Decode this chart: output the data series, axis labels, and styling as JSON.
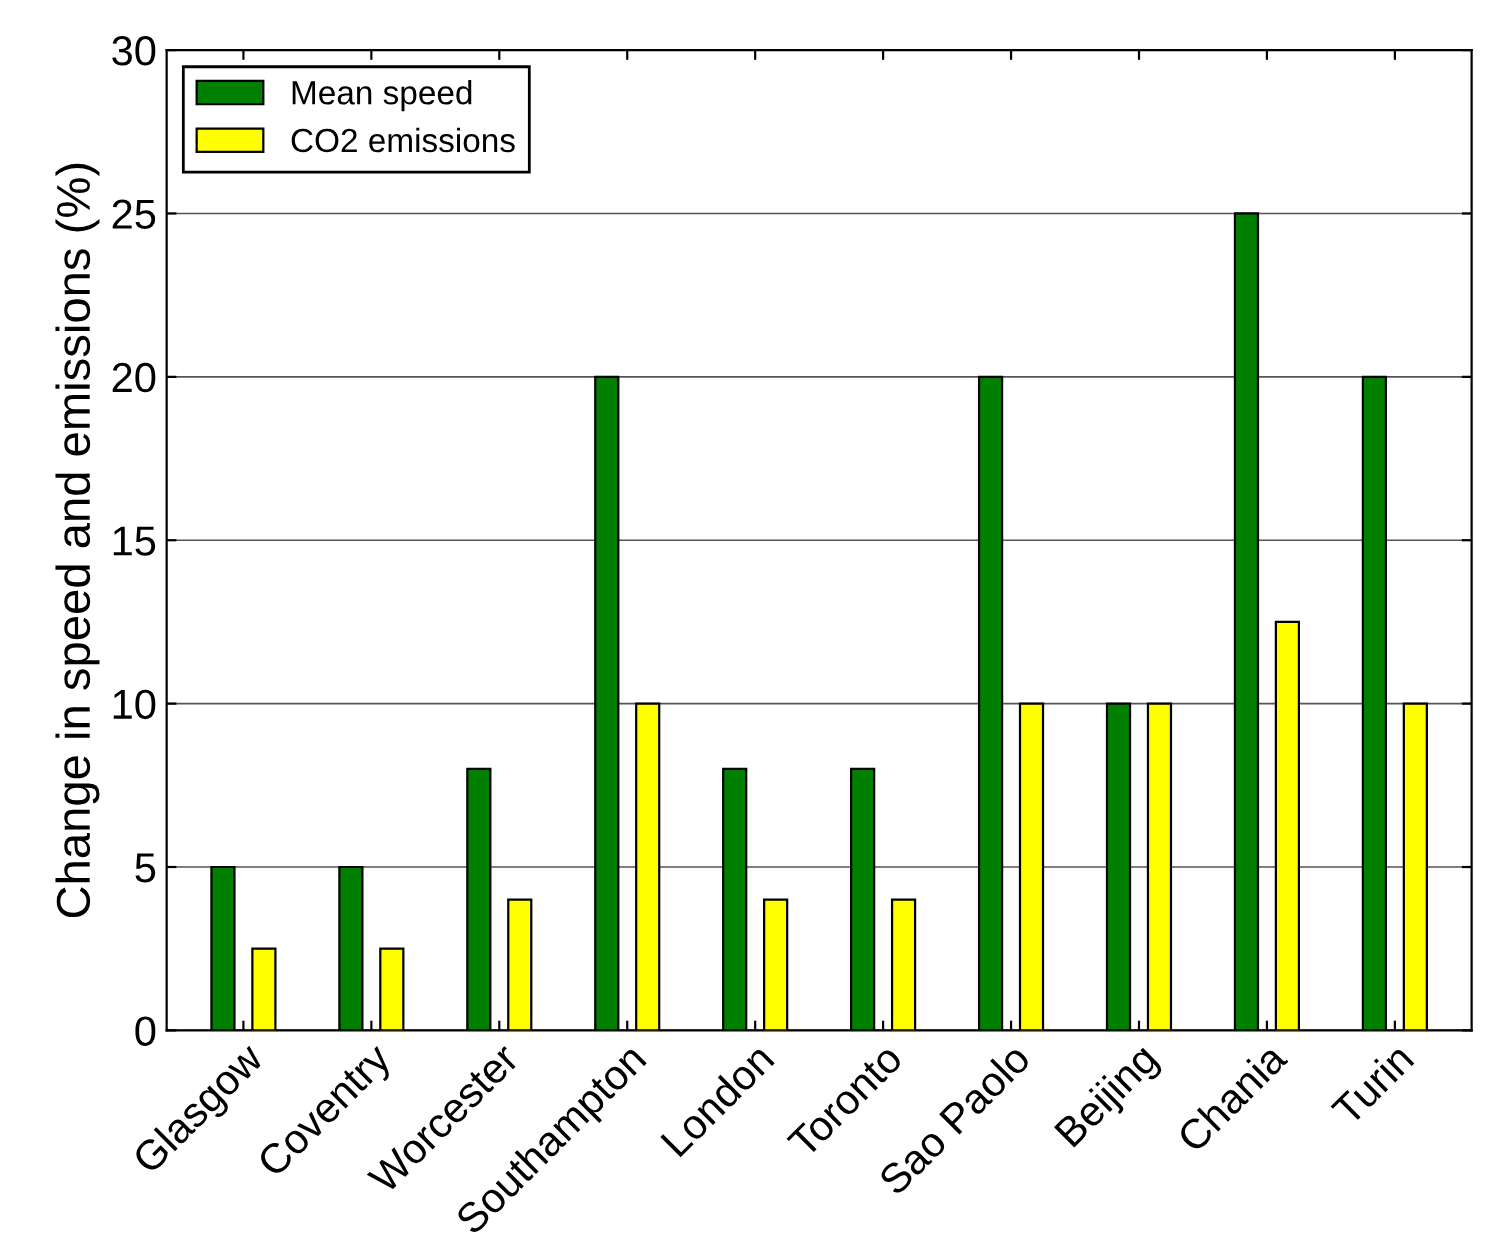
{
  "chart_data": {
    "type": "bar",
    "ylabel": "Change in speed and emissions (%)",
    "categories": [
      "Glasgow",
      "Coventry",
      "Worcester",
      "Southampton",
      "London",
      "Toronto",
      "Sao Paolo",
      "Beijing",
      "Chania",
      "Turin"
    ],
    "series": [
      {
        "name": "Mean speed",
        "color": "#007f00",
        "values": [
          5,
          5,
          8,
          20,
          8,
          8,
          20,
          10,
          25,
          20
        ]
      },
      {
        "name": "CO2 emissions",
        "color": "#ffff00",
        "values": [
          2.5,
          2.5,
          4,
          10,
          4,
          4,
          10,
          10,
          12.5,
          10
        ]
      }
    ],
    "ylim": [
      0,
      30
    ],
    "yticks": [
      0,
      5,
      10,
      15,
      20,
      25,
      30
    ],
    "grid": "y",
    "legend": "top left"
  }
}
